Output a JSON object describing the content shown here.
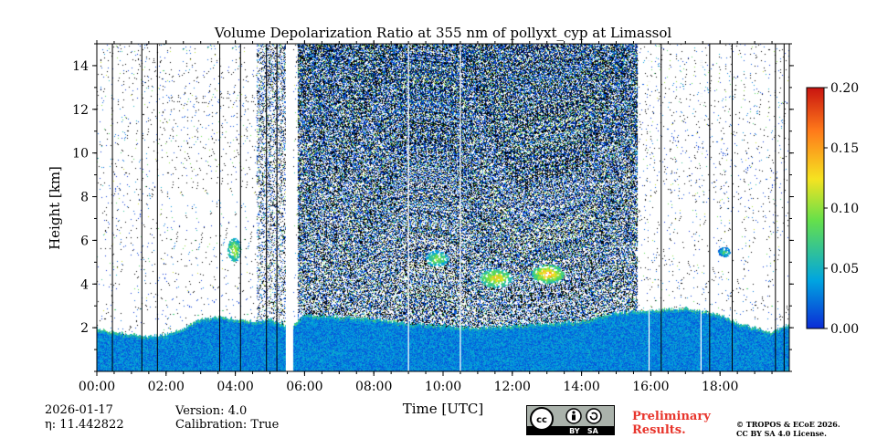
{
  "chart_data": {
    "type": "heatmap",
    "title": "Volume Depolarization Ratio at 355 nm of pollyxt_cyp at Limassol",
    "xlabel": "Time [UTC]",
    "ylabel": "Height [km]",
    "xlim": [
      0,
      20
    ],
    "ylim": [
      0,
      15
    ],
    "x_ticks": [
      0,
      2,
      4,
      6,
      8,
      10,
      12,
      14,
      16,
      18
    ],
    "x_tick_labels": [
      "00:00",
      "02:00",
      "04:00",
      "06:00",
      "08:00",
      "10:00",
      "12:00",
      "14:00",
      "16:00",
      "18:00"
    ],
    "y_ticks": [
      2,
      4,
      6,
      8,
      10,
      12,
      14
    ],
    "y_tick_labels": [
      "2",
      "4",
      "6",
      "8",
      "10",
      "12",
      "14"
    ],
    "colorbar": {
      "min": 0.0,
      "max": 0.2,
      "ticks": [
        0.0,
        0.05,
        0.1,
        0.15,
        0.2
      ],
      "tick_labels": [
        "0.00",
        "0.05",
        "0.10",
        "0.15",
        "0.20"
      ],
      "colormap": "jet"
    },
    "boundary_layer_top_km": [
      [
        0.0,
        2.0
      ],
      [
        0.5,
        1.8
      ],
      [
        1.0,
        1.7
      ],
      [
        1.5,
        1.6
      ],
      [
        2.0,
        1.7
      ],
      [
        2.5,
        2.0
      ],
      [
        3.0,
        2.4
      ],
      [
        3.5,
        2.5
      ],
      [
        4.0,
        2.4
      ],
      [
        4.5,
        2.3
      ],
      [
        5.0,
        2.4
      ],
      [
        5.6,
        2.0
      ],
      [
        6.0,
        2.6
      ],
      [
        7.0,
        2.5
      ],
      [
        8.0,
        2.4
      ],
      [
        9.0,
        2.2
      ],
      [
        10.0,
        2.1
      ],
      [
        11.0,
        2.0
      ],
      [
        12.0,
        2.1
      ],
      [
        13.0,
        2.2
      ],
      [
        14.0,
        2.3
      ],
      [
        15.0,
        2.7
      ],
      [
        16.0,
        2.8
      ],
      [
        17.0,
        2.9
      ],
      [
        18.0,
        2.6
      ],
      [
        18.5,
        2.2
      ],
      [
        19.0,
        2.0
      ],
      [
        19.5,
        1.8
      ],
      [
        20.0,
        2.2
      ]
    ],
    "noise_regions": [
      {
        "start_h": 4.6,
        "end_h": 5.5,
        "top_km": 15.0,
        "density": 0.35
      },
      {
        "start_h": 5.8,
        "end_h": 15.6,
        "top_km": 15.0,
        "density": 0.75
      }
    ],
    "aerosol_layers": [
      {
        "center_h": 3.95,
        "center_km": 5.6,
        "width_h": 0.35,
        "height_km": 1.0,
        "ratio": 0.12
      },
      {
        "center_h": 9.8,
        "center_km": 5.2,
        "width_h": 0.6,
        "height_km": 0.7,
        "ratio": 0.11
      },
      {
        "center_h": 11.5,
        "center_km": 4.3,
        "width_h": 0.9,
        "height_km": 0.8,
        "ratio": 0.14
      },
      {
        "center_h": 13.0,
        "center_km": 4.5,
        "width_h": 0.9,
        "height_km": 0.8,
        "ratio": 0.16
      },
      {
        "center_h": 18.1,
        "center_km": 5.5,
        "width_h": 0.3,
        "height_km": 0.4,
        "ratio": 0.08
      }
    ],
    "data_gaps_h": [
      [
        5.46,
        5.66
      ]
    ]
  },
  "footer": {
    "date": "2026-01-17",
    "eta_label": "η: 11.442822",
    "version": "Version: 4.0",
    "calibration": "Calibration: True",
    "preliminary_line1": "Preliminary",
    "preliminary_line2": "Results.",
    "copyright_line1": "© TROPOS & ECoE 2026.",
    "copyright_line2": "CC BY SA 4.0 License.",
    "license_badge_text": "BY   SA"
  },
  "colors": {
    "cb_0": "#0b2bd6",
    "cb_1": "#00a5e0",
    "cb_2": "#66e04a",
    "cb_3": "#f5e321",
    "cb_4": "#ff7a1a",
    "cb_5": "#c81410",
    "prelim_text": "#e8342b"
  }
}
